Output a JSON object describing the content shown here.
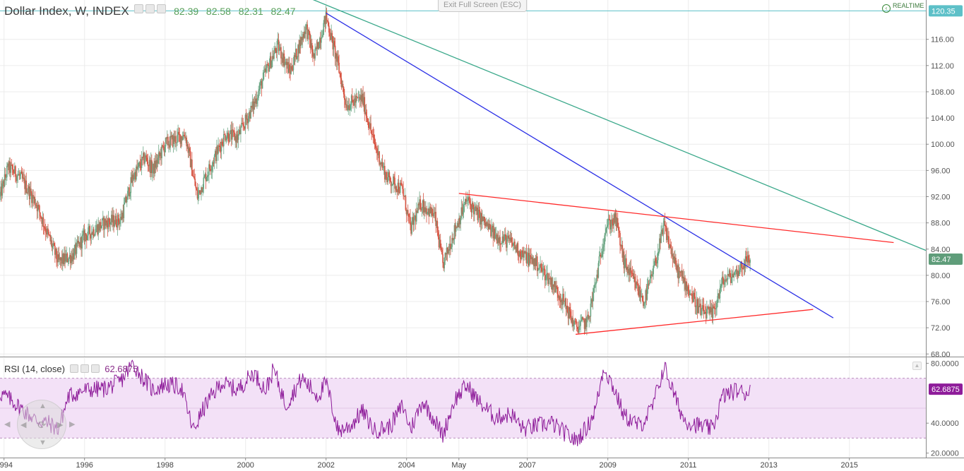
{
  "header": {
    "title": "Dollar Index, W, INDEX",
    "open": "82.39",
    "high": "82.58",
    "low": "82.31",
    "close": "82.47"
  },
  "toolbar": {
    "exit_fullscreen_label": "Exit Full Screen (ESC)",
    "realtime_label": "REALTIME"
  },
  "rsi_header": {
    "label": "RSI (14, close)",
    "value": "62.6875"
  },
  "colors": {
    "up_candle": "#6ba583",
    "down_candle": "#d75442",
    "blue_trendline": "#2a2fe6",
    "green_trendline": "#3aa88a",
    "red_trendline": "#ff2a2a",
    "top_hline": "#5dc0c8",
    "rsi_line": "#8e1c9a",
    "rsi_band": "#f3e1f7",
    "price_badge": "#5f9d7a",
    "rsi_badge": "#8e1c9a",
    "hline_badge": "#5dc0c8"
  },
  "chart_data": [
    {
      "type": "candlestick",
      "x_axis": {
        "range": [
          1993.9,
          2016.9
        ],
        "tick_labels": [
          {
            "x": 1994.0,
            "label": "1994"
          },
          {
            "x": 1996.0,
            "label": "1996"
          },
          {
            "x": 1998.0,
            "label": "1998"
          },
          {
            "x": 2000.0,
            "label": "2000"
          },
          {
            "x": 2002.0,
            "label": "2002"
          },
          {
            "x": 2004.0,
            "label": "2004"
          },
          {
            "x": 2005.3,
            "label": "May"
          },
          {
            "x": 2007.0,
            "label": "2007"
          },
          {
            "x": 2009.0,
            "label": "2009"
          },
          {
            "x": 2011.0,
            "label": "2011"
          },
          {
            "x": 2013.0,
            "label": "2013"
          },
          {
            "x": 2015.0,
            "label": "2015"
          }
        ]
      },
      "y_axis": {
        "range": [
          67.6,
          122.0
        ],
        "ticks": [
          "68.00",
          "72.00",
          "76.00",
          "80.00",
          "84.00",
          "88.00",
          "92.00",
          "96.00",
          "100.00",
          "104.00",
          "108.00",
          "112.00",
          "116.00"
        ]
      },
      "last_price_label": "82.47",
      "last_price": 82.47,
      "horizontal_line": {
        "value": 120.35,
        "label": "120.35"
      },
      "price_path": [
        [
          1993.9,
          92.0
        ],
        [
          1994.1,
          96.5
        ],
        [
          1994.4,
          95.0
        ],
        [
          1994.8,
          91.0
        ],
        [
          1995.1,
          86.0
        ],
        [
          1995.35,
          82.0
        ],
        [
          1995.7,
          83.0
        ],
        [
          1996.0,
          86.0
        ],
        [
          1996.5,
          88.0
        ],
        [
          1996.9,
          88.5
        ],
        [
          1997.2,
          95.0
        ],
        [
          1997.5,
          98.0
        ],
        [
          1997.7,
          96.0
        ],
        [
          1998.0,
          100.0
        ],
        [
          1998.5,
          101.5
        ],
        [
          1998.8,
          92.0
        ],
        [
          1999.0,
          95.0
        ],
        [
          1999.5,
          101.5
        ],
        [
          1999.8,
          101.0
        ],
        [
          2000.2,
          106.0
        ],
        [
          2000.5,
          111.0
        ],
        [
          2000.8,
          115.0
        ],
        [
          2001.1,
          111.0
        ],
        [
          2001.5,
          118.0
        ],
        [
          2001.7,
          113.0
        ],
        [
          2002.0,
          119.5
        ],
        [
          2002.3,
          112.0
        ],
        [
          2002.5,
          106.0
        ],
        [
          2002.9,
          107.0
        ],
        [
          2003.2,
          100.0
        ],
        [
          2003.5,
          95.0
        ],
        [
          2003.9,
          93.0
        ],
        [
          2004.1,
          87.0
        ],
        [
          2004.35,
          91.0
        ],
        [
          2004.7,
          89.0
        ],
        [
          2004.9,
          81.5
        ],
        [
          2005.2,
          87.0
        ],
        [
          2005.5,
          91.5
        ],
        [
          2005.8,
          89.0
        ],
        [
          2006.2,
          86.0
        ],
        [
          2006.6,
          85.0
        ],
        [
          2006.9,
          83.0
        ],
        [
          2007.2,
          82.0
        ],
        [
          2007.6,
          79.0
        ],
        [
          2007.9,
          76.0
        ],
        [
          2008.2,
          72.0
        ],
        [
          2008.5,
          73.0
        ],
        [
          2008.7,
          79.0
        ],
        [
          2008.95,
          87.5
        ],
        [
          2009.2,
          88.5
        ],
        [
          2009.4,
          82.0
        ],
        [
          2009.9,
          76.0
        ],
        [
          2010.1,
          80.0
        ],
        [
          2010.4,
          87.5
        ],
        [
          2010.7,
          81.0
        ],
        [
          2010.9,
          79.0
        ],
        [
          2011.3,
          74.5
        ],
        [
          2011.6,
          74.0
        ],
        [
          2011.85,
          79.0
        ],
        [
          2012.2,
          80.5
        ],
        [
          2012.4,
          82.0
        ],
        [
          2012.55,
          82.47
        ]
      ],
      "trendlines": [
        {
          "name": "blue",
          "from": [
            2002.0,
            120.0
          ],
          "to": [
            2014.6,
            73.5
          ]
        },
        {
          "name": "green",
          "from": [
            2001.5,
            122.5
          ],
          "to": [
            2016.9,
            83.8
          ]
        },
        {
          "name": "red-upper",
          "from": [
            2005.3,
            92.5
          ],
          "to": [
            2016.1,
            85.0
          ]
        },
        {
          "name": "red-lower",
          "from": [
            2008.2,
            71.0
          ],
          "to": [
            2014.1,
            74.8
          ]
        }
      ]
    },
    {
      "type": "line",
      "title": "RSI (14, close)",
      "y_axis": {
        "range": [
          17.0,
          83.5
        ],
        "ticks": [
          "20.0000",
          "40.0000",
          "80.0000"
        ]
      },
      "bands": {
        "upper": 70,
        "lower": 30
      },
      "last_value_label": "62.6875",
      "last_value": 62.6875,
      "rsi_path": [
        [
          1993.9,
          60
        ],
        [
          1994.2,
          55
        ],
        [
          1994.5,
          48
        ],
        [
          1994.8,
          42
        ],
        [
          1995.1,
          40
        ],
        [
          1995.35,
          36
        ],
        [
          1995.6,
          58
        ],
        [
          1996.0,
          62
        ],
        [
          1996.5,
          63
        ],
        [
          1996.9,
          68
        ],
        [
          1997.2,
          80
        ],
        [
          1997.4,
          72
        ],
        [
          1997.7,
          62
        ],
        [
          1998.0,
          66
        ],
        [
          1998.4,
          64
        ],
        [
          1998.7,
          35
        ],
        [
          1999.0,
          52
        ],
        [
          1999.4,
          67
        ],
        [
          1999.8,
          62
        ],
        [
          2000.2,
          74
        ],
        [
          2000.5,
          62
        ],
        [
          2000.7,
          76
        ],
        [
          2001.0,
          52
        ],
        [
          2001.4,
          70
        ],
        [
          2001.8,
          58
        ],
        [
          2002.0,
          67
        ],
        [
          2002.3,
          35
        ],
        [
          2002.6,
          38
        ],
        [
          2002.9,
          48
        ],
        [
          2003.2,
          35
        ],
        [
          2003.6,
          38
        ],
        [
          2003.9,
          52
        ],
        [
          2004.1,
          36
        ],
        [
          2004.4,
          55
        ],
        [
          2004.7,
          42
        ],
        [
          2004.9,
          32
        ],
        [
          2005.2,
          56
        ],
        [
          2005.5,
          65
        ],
        [
          2005.8,
          54
        ],
        [
          2006.2,
          44
        ],
        [
          2006.6,
          46
        ],
        [
          2006.9,
          36
        ],
        [
          2007.2,
          38
        ],
        [
          2007.6,
          40
        ],
        [
          2007.9,
          34
        ],
        [
          2008.2,
          28
        ],
        [
          2008.5,
          38
        ],
        [
          2008.7,
          50
        ],
        [
          2008.9,
          78
        ],
        [
          2009.2,
          60
        ],
        [
          2009.4,
          45
        ],
        [
          2009.8,
          38
        ],
        [
          2010.1,
          50
        ],
        [
          2010.4,
          78
        ],
        [
          2010.7,
          55
        ],
        [
          2010.9,
          42
        ],
        [
          2011.3,
          38
        ],
        [
          2011.6,
          36
        ],
        [
          2011.85,
          58
        ],
        [
          2012.2,
          62
        ],
        [
          2012.4,
          60
        ],
        [
          2012.55,
          62.6875
        ]
      ]
    }
  ]
}
